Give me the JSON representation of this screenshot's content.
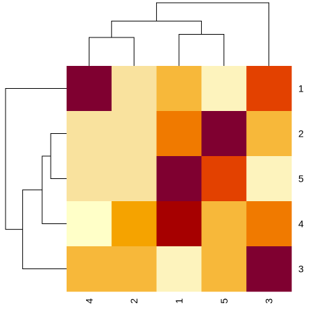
{
  "chart_data": {
    "type": "heatmap",
    "title": "",
    "xlabel": "",
    "ylabel": "",
    "col_labels": [
      "4",
      "2",
      "1",
      "5",
      "3"
    ],
    "row_labels": [
      "1",
      "2",
      "5",
      "4",
      "3"
    ],
    "values": [
      [
        0.0,
        0.8,
        0.5,
        0.9,
        0.25
      ],
      [
        0.8,
        0.75,
        0.3,
        0.0,
        0.6
      ],
      [
        0.75,
        0.75,
        0.0,
        0.25,
        0.9
      ],
      [
        1.0,
        0.4,
        0.08,
        0.6,
        0.3
      ],
      [
        0.6,
        0.5,
        0.9,
        0.5,
        0.0
      ]
    ],
    "value_range": [
      0,
      1
    ],
    "color_scale": [
      "#7f0030",
      "#a60000",
      "#e34100",
      "#f07a00",
      "#f5a300",
      "#f7b83a",
      "#f7d17a",
      "#f9e29e",
      "#fdf3bd",
      "#ffffc8"
    ],
    "row_dendrogram": {
      "leaves": [
        "1",
        "2",
        "5",
        "4",
        "3"
      ],
      "merges": [
        {
          "a": "2",
          "b": "5",
          "h": 0.26
        },
        {
          "a": "m0",
          "b": "4",
          "h": 0.4
        },
        {
          "a": "m1",
          "b": "3",
          "h": 0.72
        },
        {
          "a": "1",
          "b": "m2",
          "h": 1.0
        }
      ]
    },
    "col_dendrogram": {
      "leaves": [
        "4",
        "2",
        "1",
        "5",
        "3"
      ],
      "merges": [
        {
          "a": "4",
          "b": "2",
          "h": 0.45
        },
        {
          "a": "1",
          "b": "5",
          "h": 0.5
        },
        {
          "a": "m0",
          "b": "m1",
          "h": 0.71
        },
        {
          "a": "m2",
          "b": "3",
          "h": 1.0
        }
      ]
    }
  }
}
